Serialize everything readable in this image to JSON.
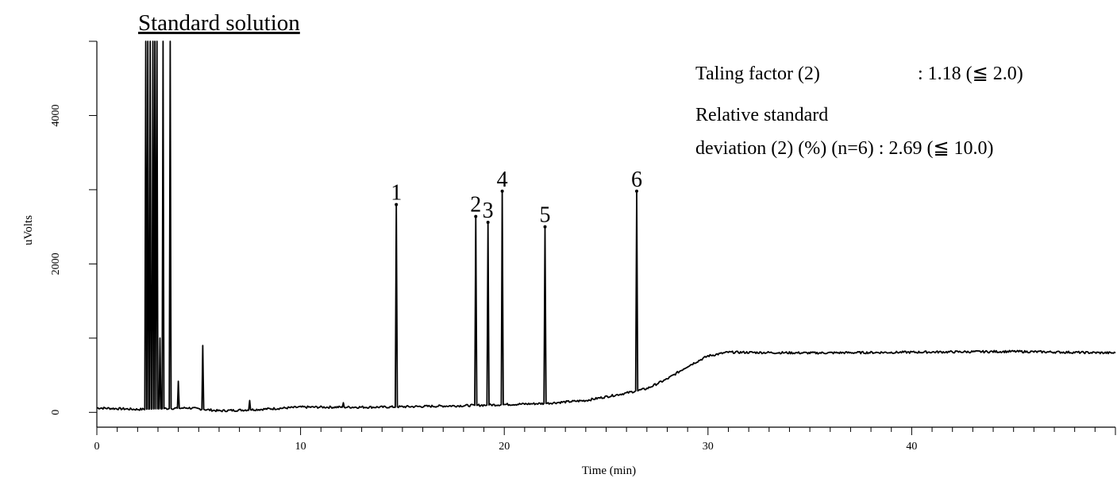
{
  "chart_data": {
    "type": "line",
    "title": "Standard solution",
    "xlabel": "Time (min)",
    "ylabel": "uVolts",
    "xlim": [
      0,
      50
    ],
    "ylim": [
      -200,
      5000
    ],
    "x_ticks": [
      "0",
      "10",
      "20",
      "30",
      "40"
    ],
    "y_ticks": [
      "0",
      "2000",
      "4000"
    ],
    "grid": false,
    "peaks": [
      {
        "label": "1",
        "time": 14.7,
        "height": 2800
      },
      {
        "label": "2",
        "time": 18.6,
        "height": 2640
      },
      {
        "label": "3",
        "time": 19.2,
        "height": 2560
      },
      {
        "label": "4",
        "time": 19.9,
        "height": 2980
      },
      {
        "label": "5",
        "time": 22.0,
        "height": 2500
      },
      {
        "label": "6",
        "time": 26.5,
        "height": 2980
      }
    ],
    "solvent_front": [
      {
        "time": 2.4,
        "height": 5000
      },
      {
        "time": 2.5,
        "height": 5000
      },
      {
        "time": 2.62,
        "height": 5000
      },
      {
        "time": 2.75,
        "height": 5000
      },
      {
        "time": 2.85,
        "height": 5000
      },
      {
        "time": 2.95,
        "height": 5000
      },
      {
        "time": 3.1,
        "height": 1000
      },
      {
        "time": 3.25,
        "height": 5000
      },
      {
        "time": 3.6,
        "height": 5000
      },
      {
        "time": 4.0,
        "height": 420
      },
      {
        "time": 5.2,
        "height": 900
      },
      {
        "time": 7.5,
        "height": 160
      },
      {
        "time": 12.1,
        "height": 130
      }
    ],
    "baseline": [
      {
        "time": 0,
        "value": 60
      },
      {
        "time": 2,
        "value": 40
      },
      {
        "time": 4.5,
        "value": 60
      },
      {
        "time": 6,
        "value": 20
      },
      {
        "time": 8,
        "value": 40
      },
      {
        "time": 10,
        "value": 70
      },
      {
        "time": 14,
        "value": 70
      },
      {
        "time": 18,
        "value": 90
      },
      {
        "time": 22,
        "value": 120
      },
      {
        "time": 24,
        "value": 160
      },
      {
        "time": 26,
        "value": 260
      },
      {
        "time": 27,
        "value": 320
      },
      {
        "time": 28,
        "value": 450
      },
      {
        "time": 29,
        "value": 620
      },
      {
        "time": 30,
        "value": 760
      },
      {
        "time": 31,
        "value": 810
      },
      {
        "time": 35,
        "value": 800
      },
      {
        "time": 40,
        "value": 810
      },
      {
        "time": 45,
        "value": 820
      },
      {
        "time": 50,
        "value": 800
      }
    ]
  },
  "info": {
    "line1_left": "Taling factor (2)",
    "line1_right": ": 1.18 (≦ 2.0)",
    "line2": "Relative standard",
    "line3": "deviation (2) (%) (n=6) : 2.69 (≦ 10.0)"
  }
}
